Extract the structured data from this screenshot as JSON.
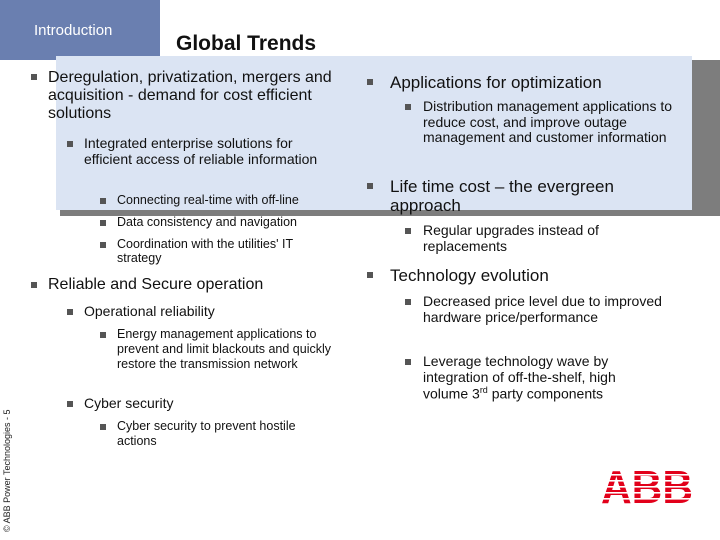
{
  "header": {
    "section_tab": "Introduction",
    "title": "Global Trends",
    "tab_color": "#6a7fb0",
    "band_color": "#dbe4f3"
  },
  "footer": {
    "copyright": "© ABB Power Technologies - 5"
  },
  "left_column": {
    "b1": "Deregulation, privatization, mergers and acquisition - demand for cost efficient solutions",
    "b1_1": "Integrated enterprise solutions for efficient access of reliable information",
    "b1_1_1": "Connecting real-time with off-line",
    "b1_1_2": "Data consistency and navigation",
    "b1_1_3": "Coordination with the utilities' IT strategy",
    "b2": "Reliable and Secure operation",
    "b2_1": "Operational reliability",
    "b2_1_1": "Energy management applications to prevent and limit blackouts and quickly restore the transmission network",
    "b2_2": "Cyber security",
    "b2_2_1": "Cyber security to prevent hostile actions"
  },
  "right_column": {
    "b1": "Applications for optimization",
    "b1_1": "Distribution management applications to reduce cost, and improve outage management and customer information",
    "b2": "Life time cost – the evergreen approach",
    "b2_1": "Regular upgrades instead of replacements",
    "b3": "Technology evolution",
    "b3_1": "Decreased price level due to improved hardware price/performance",
    "b3_2_pre": "Leverage technology wave by integration of off-the-shelf, high volume 3",
    "b3_2_sup": "rd",
    "b3_2_post": " party components"
  },
  "logo": {
    "text": "ABB",
    "color": "#e2001a"
  }
}
